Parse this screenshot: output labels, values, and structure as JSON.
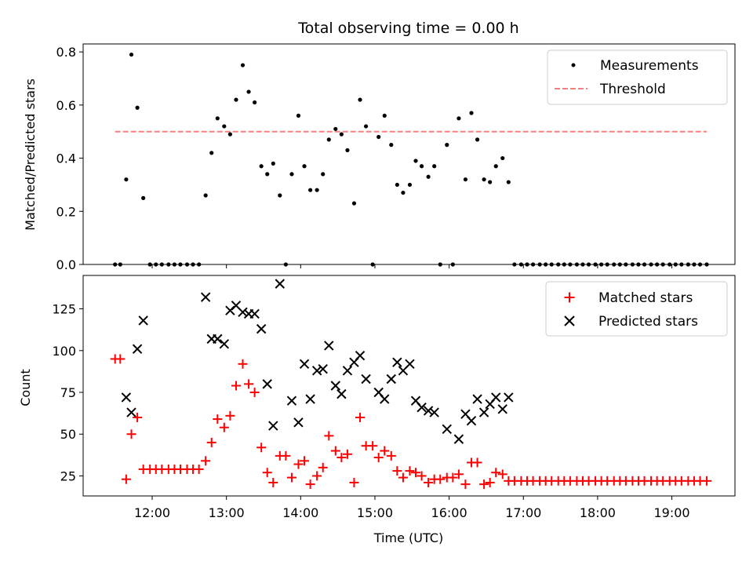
{
  "chart_data": [
    {
      "type": "scatter",
      "title": "Total observing time = 0.00 h",
      "xlabel": "",
      "ylabel": "Matched/Predicted stars",
      "ylim": [
        0,
        0.83
      ],
      "yticks": [
        0.0,
        0.2,
        0.4,
        0.6,
        0.8
      ],
      "ytick_labels": [
        "0.0",
        "0.2",
        "0.4",
        "0.6",
        "0.8"
      ],
      "xlim": [
        11.07,
        19.85
      ],
      "legend_position": "top-right",
      "series": [
        {
          "name": "Measurements",
          "marker": "dot",
          "color": "#000000",
          "points": [
            [
              11.5,
              0.0
            ],
            [
              11.57,
              0.0
            ],
            [
              11.65,
              0.32
            ],
            [
              11.72,
              0.79
            ],
            [
              11.8,
              0.59
            ],
            [
              11.88,
              0.25
            ],
            [
              11.97,
              0.0
            ],
            [
              12.05,
              0.0
            ],
            [
              12.13,
              0.0
            ],
            [
              12.22,
              0.0
            ],
            [
              12.3,
              0.0
            ],
            [
              12.38,
              0.0
            ],
            [
              12.47,
              0.0
            ],
            [
              12.55,
              0.0
            ],
            [
              12.63,
              0.0
            ],
            [
              12.72,
              0.26
            ],
            [
              12.8,
              0.42
            ],
            [
              12.88,
              0.55
            ],
            [
              12.97,
              0.52
            ],
            [
              13.05,
              0.49
            ],
            [
              13.13,
              0.62
            ],
            [
              13.22,
              0.75
            ],
            [
              13.3,
              0.65
            ],
            [
              13.38,
              0.61
            ],
            [
              13.47,
              0.37
            ],
            [
              13.55,
              0.34
            ],
            [
              13.63,
              0.38
            ],
            [
              13.72,
              0.26
            ],
            [
              13.8,
              0.0
            ],
            [
              13.88,
              0.34
            ],
            [
              13.97,
              0.56
            ],
            [
              14.05,
              0.37
            ],
            [
              14.13,
              0.28
            ],
            [
              14.22,
              0.28
            ],
            [
              14.3,
              0.34
            ],
            [
              14.38,
              0.47
            ],
            [
              14.47,
              0.51
            ],
            [
              14.55,
              0.49
            ],
            [
              14.63,
              0.43
            ],
            [
              14.72,
              0.23
            ],
            [
              14.8,
              0.62
            ],
            [
              14.88,
              0.52
            ],
            [
              14.97,
              0.0
            ],
            [
              15.05,
              0.48
            ],
            [
              15.13,
              0.56
            ],
            [
              15.22,
              0.45
            ],
            [
              15.3,
              0.3
            ],
            [
              15.38,
              0.27
            ],
            [
              15.47,
              0.3
            ],
            [
              15.55,
              0.39
            ],
            [
              15.63,
              0.37
            ],
            [
              15.72,
              0.33
            ],
            [
              15.8,
              0.37
            ],
            [
              15.88,
              0.0
            ],
            [
              15.97,
              0.45
            ],
            [
              16.05,
              0.0
            ],
            [
              16.13,
              0.55
            ],
            [
              16.22,
              0.32
            ],
            [
              16.3,
              0.57
            ],
            [
              16.38,
              0.47
            ],
            [
              16.47,
              0.32
            ],
            [
              16.55,
              0.31
            ],
            [
              16.63,
              0.37
            ],
            [
              16.72,
              0.4
            ],
            [
              16.8,
              0.31
            ],
            [
              16.88,
              0.0
            ],
            [
              16.97,
              0.0
            ],
            [
              17.05,
              0.0
            ],
            [
              17.13,
              0.0
            ],
            [
              17.22,
              0.0
            ],
            [
              17.3,
              0.0
            ],
            [
              17.38,
              0.0
            ],
            [
              17.47,
              0.0
            ],
            [
              17.55,
              0.0
            ],
            [
              17.63,
              0.0
            ],
            [
              17.72,
              0.0
            ],
            [
              17.8,
              0.0
            ],
            [
              17.88,
              0.0
            ],
            [
              17.97,
              0.0
            ],
            [
              18.05,
              0.0
            ],
            [
              18.13,
              0.0
            ],
            [
              18.22,
              0.0
            ],
            [
              18.3,
              0.0
            ],
            [
              18.38,
              0.0
            ],
            [
              18.47,
              0.0
            ],
            [
              18.55,
              0.0
            ],
            [
              18.63,
              0.0
            ],
            [
              18.72,
              0.0
            ],
            [
              18.8,
              0.0
            ],
            [
              18.88,
              0.0
            ],
            [
              18.97,
              0.0
            ],
            [
              19.05,
              0.0
            ],
            [
              19.13,
              0.0
            ],
            [
              19.22,
              0.0
            ],
            [
              19.3,
              0.0
            ],
            [
              19.38,
              0.0
            ],
            [
              19.47,
              0.0
            ]
          ]
        },
        {
          "name": "Threshold",
          "marker": "dashed-line",
          "color": "#ff7f7f",
          "points": [
            [
              11.5,
              0.5
            ],
            [
              19.47,
              0.5
            ]
          ]
        }
      ]
    },
    {
      "type": "scatter",
      "title": "",
      "xlabel": "Time (UTC)",
      "ylabel": "Count",
      "ylim": [
        13,
        145
      ],
      "yticks": [
        25,
        50,
        75,
        100,
        125
      ],
      "ytick_labels": [
        "25",
        "50",
        "75",
        "100",
        "125"
      ],
      "xlim": [
        11.07,
        19.85
      ],
      "xticks": [
        12,
        13,
        14,
        15,
        16,
        17,
        18,
        19
      ],
      "xtick_labels": [
        "12:00",
        "13:00",
        "14:00",
        "15:00",
        "16:00",
        "17:00",
        "18:00",
        "19:00"
      ],
      "legend_position": "top-right",
      "series": [
        {
          "name": "Matched stars",
          "marker": "plus",
          "color": "#ff0000",
          "points": [
            [
              11.5,
              95
            ],
            [
              11.57,
              95
            ],
            [
              11.65,
              23
            ],
            [
              11.72,
              50
            ],
            [
              11.8,
              60
            ],
            [
              11.88,
              29
            ],
            [
              11.97,
              29
            ],
            [
              12.05,
              29
            ],
            [
              12.13,
              29
            ],
            [
              12.22,
              29
            ],
            [
              12.3,
              29
            ],
            [
              12.38,
              29
            ],
            [
              12.47,
              29
            ],
            [
              12.55,
              29
            ],
            [
              12.63,
              29
            ],
            [
              12.72,
              34
            ],
            [
              12.8,
              45
            ],
            [
              12.88,
              59
            ],
            [
              12.97,
              54
            ],
            [
              13.05,
              61
            ],
            [
              13.13,
              79
            ],
            [
              13.22,
              92
            ],
            [
              13.3,
              80
            ],
            [
              13.38,
              75
            ],
            [
              13.47,
              42
            ],
            [
              13.55,
              27
            ],
            [
              13.63,
              21
            ],
            [
              13.72,
              37
            ],
            [
              13.8,
              37
            ],
            [
              13.88,
              24
            ],
            [
              13.97,
              32
            ],
            [
              14.05,
              34
            ],
            [
              14.13,
              20
            ],
            [
              14.22,
              25
            ],
            [
              14.3,
              30
            ],
            [
              14.38,
              49
            ],
            [
              14.47,
              40
            ],
            [
              14.55,
              36
            ],
            [
              14.63,
              38
            ],
            [
              14.72,
              21
            ],
            [
              14.8,
              60
            ],
            [
              14.88,
              43
            ],
            [
              14.97,
              43
            ],
            [
              15.05,
              36
            ],
            [
              15.13,
              40
            ],
            [
              15.22,
              37
            ],
            [
              15.3,
              28
            ],
            [
              15.38,
              24
            ],
            [
              15.47,
              28
            ],
            [
              15.55,
              27
            ],
            [
              15.63,
              25
            ],
            [
              15.72,
              21
            ],
            [
              15.8,
              23
            ],
            [
              15.88,
              23
            ],
            [
              15.97,
              24
            ],
            [
              16.05,
              24
            ],
            [
              16.13,
              26
            ],
            [
              16.22,
              20
            ],
            [
              16.3,
              33
            ],
            [
              16.38,
              33
            ],
            [
              16.47,
              20
            ],
            [
              16.55,
              21
            ],
            [
              16.63,
              27
            ],
            [
              16.72,
              26
            ],
            [
              16.8,
              22
            ],
            [
              16.88,
              22
            ],
            [
              16.97,
              22
            ],
            [
              17.05,
              22
            ],
            [
              17.13,
              22
            ],
            [
              17.22,
              22
            ],
            [
              17.3,
              22
            ],
            [
              17.38,
              22
            ],
            [
              17.47,
              22
            ],
            [
              17.55,
              22
            ],
            [
              17.63,
              22
            ],
            [
              17.72,
              22
            ],
            [
              17.8,
              22
            ],
            [
              17.88,
              22
            ],
            [
              17.97,
              22
            ],
            [
              18.05,
              22
            ],
            [
              18.13,
              22
            ],
            [
              18.22,
              22
            ],
            [
              18.3,
              22
            ],
            [
              18.38,
              22
            ],
            [
              18.47,
              22
            ],
            [
              18.55,
              22
            ],
            [
              18.63,
              22
            ],
            [
              18.72,
              22
            ],
            [
              18.8,
              22
            ],
            [
              18.88,
              22
            ],
            [
              18.97,
              22
            ],
            [
              19.05,
              22
            ],
            [
              19.13,
              22
            ],
            [
              19.22,
              22
            ],
            [
              19.3,
              22
            ],
            [
              19.38,
              22
            ],
            [
              19.47,
              22
            ]
          ]
        },
        {
          "name": "Predicted stars",
          "marker": "x",
          "color": "#000000",
          "points": [
            [
              11.65,
              72
            ],
            [
              11.72,
              63
            ],
            [
              11.8,
              101
            ],
            [
              11.88,
              118
            ],
            [
              12.72,
              132
            ],
            [
              12.8,
              107
            ],
            [
              12.88,
              107
            ],
            [
              12.97,
              104
            ],
            [
              13.05,
              124
            ],
            [
              13.13,
              127
            ],
            [
              13.22,
              123
            ],
            [
              13.3,
              122
            ],
            [
              13.38,
              122
            ],
            [
              13.47,
              113
            ],
            [
              13.55,
              80
            ],
            [
              13.63,
              55
            ],
            [
              13.72,
              140
            ],
            [
              13.88,
              70
            ],
            [
              13.97,
              57
            ],
            [
              14.05,
              92
            ],
            [
              14.13,
              71
            ],
            [
              14.22,
              88
            ],
            [
              14.3,
              89
            ],
            [
              14.38,
              103
            ],
            [
              14.47,
              79
            ],
            [
              14.55,
              74
            ],
            [
              14.63,
              88
            ],
            [
              14.72,
              93
            ],
            [
              14.8,
              97
            ],
            [
              14.88,
              83
            ],
            [
              15.05,
              75
            ],
            [
              15.13,
              71
            ],
            [
              15.22,
              83
            ],
            [
              15.3,
              93
            ],
            [
              15.38,
              88
            ],
            [
              15.47,
              92
            ],
            [
              15.55,
              70
            ],
            [
              15.63,
              66
            ],
            [
              15.72,
              64
            ],
            [
              15.8,
              63
            ],
            [
              15.97,
              53
            ],
            [
              16.13,
              47
            ],
            [
              16.22,
              62
            ],
            [
              16.3,
              58
            ],
            [
              16.38,
              71
            ],
            [
              16.47,
              63
            ],
            [
              16.55,
              68
            ],
            [
              16.63,
              72
            ],
            [
              16.72,
              65
            ],
            [
              16.8,
              72
            ]
          ]
        }
      ]
    }
  ]
}
